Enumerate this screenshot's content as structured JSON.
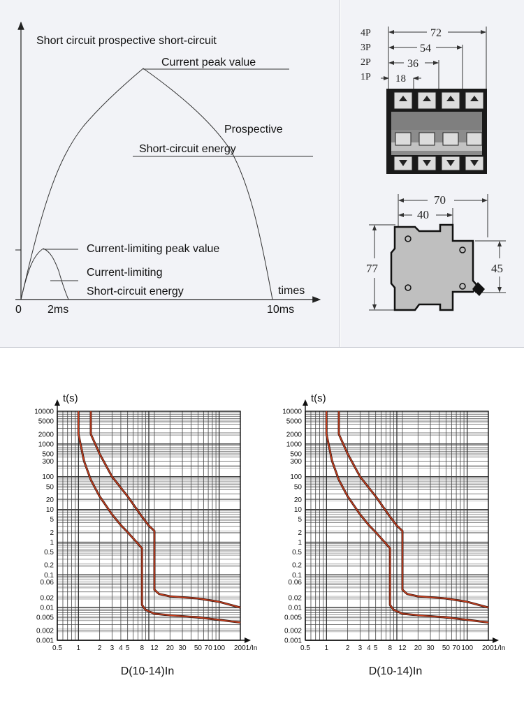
{
  "current_diagram": {
    "title": "Short circuit prospective short-circuit",
    "peak_label": "Current peak value",
    "prospective_label_1": "Prospective",
    "prospective_label_2": "Short-circuit energy",
    "limiting_peak_label": "Current-limiting peak value",
    "limiting_energy_label_1": "Current-limiting",
    "limiting_energy_label_2": "Short-circuit energy",
    "x_axis_label": "times",
    "tick_0": "0",
    "tick_2ms": "2ms",
    "tick_10ms": "10ms"
  },
  "width_dimensions": {
    "rows": [
      {
        "poles": "4P",
        "value": "72"
      },
      {
        "poles": "3P",
        "value": "54"
      },
      {
        "poles": "2P",
        "value": "36"
      },
      {
        "poles": "1P",
        "value": "18"
      }
    ]
  },
  "side_dimensions": {
    "depth_total": "70",
    "depth_front": "40",
    "height_total": "77",
    "height_front": "45"
  },
  "chart_data": [
    {
      "type": "line",
      "title": "D(10-14)In",
      "ylabel": "t(s)",
      "xlabel": "I/In",
      "x_scale": "log",
      "y_scale": "log",
      "xlim": [
        0.5,
        200
      ],
      "ylim": [
        0.001,
        10000
      ],
      "x_ticks": [
        "0.5",
        "1",
        "2",
        "3",
        "4",
        "5",
        "8",
        "12",
        "20",
        "30",
        "50",
        "70",
        "100",
        "200"
      ],
      "y_ticks": [
        "10000",
        "5000",
        "2000",
        "1000",
        "500",
        "300",
        "100",
        "50",
        "20",
        "10",
        "5",
        "2",
        "1",
        "0.5",
        "0.2",
        "0.1",
        "0.06",
        "0.02",
        "0.01",
        "0.005",
        "0.002",
        "0.001"
      ],
      "grid": true,
      "series": [
        {
          "points": [
            [
              1,
              10000
            ],
            [
              1,
              2000
            ],
            [
              1.2,
              300
            ],
            [
              1.5,
              80
            ],
            [
              2,
              25
            ],
            [
              3,
              7
            ],
            [
              4,
              3.3
            ],
            [
              5,
              2
            ],
            [
              6,
              1.3
            ],
            [
              7,
              0.9
            ],
            [
              8,
              0.65
            ],
            [
              8,
              0.012
            ],
            [
              9,
              0.0085
            ],
            [
              12,
              0.0065
            ],
            [
              20,
              0.0058
            ],
            [
              50,
              0.005
            ],
            [
              100,
              0.0042
            ],
            [
              200,
              0.0035
            ]
          ]
        },
        {
          "points": [
            [
              1.5,
              10000
            ],
            [
              1.5,
              2000
            ],
            [
              2,
              500
            ],
            [
              3,
              100
            ],
            [
              5,
              25
            ],
            [
              8,
              6
            ],
            [
              10,
              3.2
            ],
            [
              12,
              2.2
            ],
            [
              12,
              0.035
            ],
            [
              14,
              0.026
            ],
            [
              20,
              0.022
            ],
            [
              50,
              0.019
            ],
            [
              100,
              0.015
            ],
            [
              200,
              0.01
            ]
          ]
        }
      ]
    },
    {
      "type": "line",
      "title": "D(10-14)In",
      "ylabel": "t(s)",
      "xlabel": "I/In",
      "x_scale": "log",
      "y_scale": "log",
      "xlim": [
        0.5,
        200
      ],
      "ylim": [
        0.001,
        10000
      ],
      "x_ticks": [
        "0.5",
        "1",
        "2",
        "3",
        "4",
        "5",
        "8",
        "12",
        "20",
        "30",
        "50",
        "70",
        "100",
        "200"
      ],
      "y_ticks": [
        "10000",
        "5000",
        "2000",
        "1000",
        "500",
        "300",
        "100",
        "50",
        "20",
        "10",
        "5",
        "2",
        "1",
        "0.5",
        "0.2",
        "0.1",
        "0.06",
        "0.02",
        "0.01",
        "0.005",
        "0.002",
        "0.001"
      ],
      "grid": true,
      "series": [
        {
          "points": [
            [
              1,
              10000
            ],
            [
              1,
              2000
            ],
            [
              1.2,
              300
            ],
            [
              1.5,
              80
            ],
            [
              2,
              25
            ],
            [
              3,
              7
            ],
            [
              4,
              3.3
            ],
            [
              5,
              2
            ],
            [
              6,
              1.3
            ],
            [
              7,
              0.9
            ],
            [
              8,
              0.65
            ],
            [
              8,
              0.012
            ],
            [
              9,
              0.0085
            ],
            [
              12,
              0.0065
            ],
            [
              20,
              0.0058
            ],
            [
              50,
              0.005
            ],
            [
              100,
              0.0042
            ],
            [
              200,
              0.0035
            ]
          ]
        },
        {
          "points": [
            [
              1.5,
              10000
            ],
            [
              1.5,
              2000
            ],
            [
              2,
              500
            ],
            [
              3,
              100
            ],
            [
              5,
              25
            ],
            [
              8,
              6
            ],
            [
              10,
              3.2
            ],
            [
              12,
              2.2
            ],
            [
              12,
              0.035
            ],
            [
              14,
              0.026
            ],
            [
              20,
              0.022
            ],
            [
              50,
              0.019
            ],
            [
              100,
              0.015
            ],
            [
              200,
              0.01
            ]
          ]
        }
      ]
    }
  ]
}
